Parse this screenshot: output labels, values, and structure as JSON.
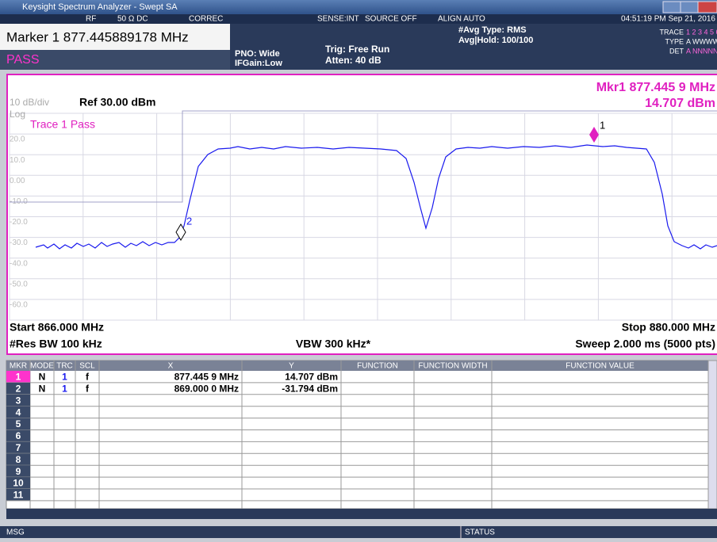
{
  "title_bar": {
    "title": "Keysight Spectrum Analyzer - Swept SA"
  },
  "status_strip": {
    "rf": "RF",
    "impedance": "50 Ω  DC",
    "correc": "CORREC",
    "sense": "SENSE:INT",
    "source": "SOURCE OFF",
    "align": "ALIGN AUTO",
    "datetime": "04:51:19 PM Sep 21, 2016"
  },
  "header": {
    "marker": "Marker 1 877.445889178 MHz",
    "pass": "PASS",
    "pno": "PNO: Wide",
    "ifgain": "IFGain:Low",
    "trig": "Trig: Free Run",
    "atten": "Atten: 40 dB",
    "avg_type": "#Avg Type: RMS",
    "avg_hold": "Avg|Hold: 100/100",
    "trace_label": "TRACE",
    "trace_nums": "1 2 3 4 5 6",
    "type_label": "TYPE",
    "type_vals": "A WWWWW",
    "det_label": "DET",
    "det_vals": "A NNNNN"
  },
  "graph": {
    "scale": "10 dB/div",
    "log": "Log",
    "ref": "Ref 30.00 dBm",
    "mkr_freq": "Mkr1 877.445 9 MHz",
    "mkr_level": "14.707 dBm",
    "trace_pass": "Trace 1 Pass",
    "y_labels": [
      "20.0",
      "10.0",
      "0.00",
      "-10.0",
      "-20.0",
      "-30.0",
      "-40.0",
      "-50.0",
      "-60.0"
    ],
    "markers": [
      {
        "label": "1"
      },
      {
        "label": "2"
      }
    ],
    "start": "Start 866.000 MHz",
    "stop": "Stop 880.000 MHz",
    "rbw": "#Res BW 100 kHz",
    "vbw": "VBW 300 kHz*",
    "sweep": "Sweep  2.000 ms (5000 pts)"
  },
  "table": {
    "headers": [
      "MKR",
      "MODE",
      "TRC",
      "SCL",
      "X",
      "Y",
      "FUNCTION",
      "FUNCTION WIDTH",
      "FUNCTION VALUE"
    ],
    "rows": [
      [
        "1",
        "N",
        "1",
        "f",
        "877.445 9 MHz",
        "14.707 dBm"
      ],
      [
        "2",
        "N",
        "1",
        "f",
        "869.000 0 MHz",
        "-31.794 dBm"
      ],
      [
        "3"
      ],
      [
        "4"
      ],
      [
        "5"
      ],
      [
        "6"
      ],
      [
        "7"
      ],
      [
        "8"
      ],
      [
        "9"
      ],
      [
        "10"
      ],
      [
        "11"
      ]
    ]
  },
  "bottom_bar": {
    "msg": "MSG",
    "status": "STATUS"
  }
}
